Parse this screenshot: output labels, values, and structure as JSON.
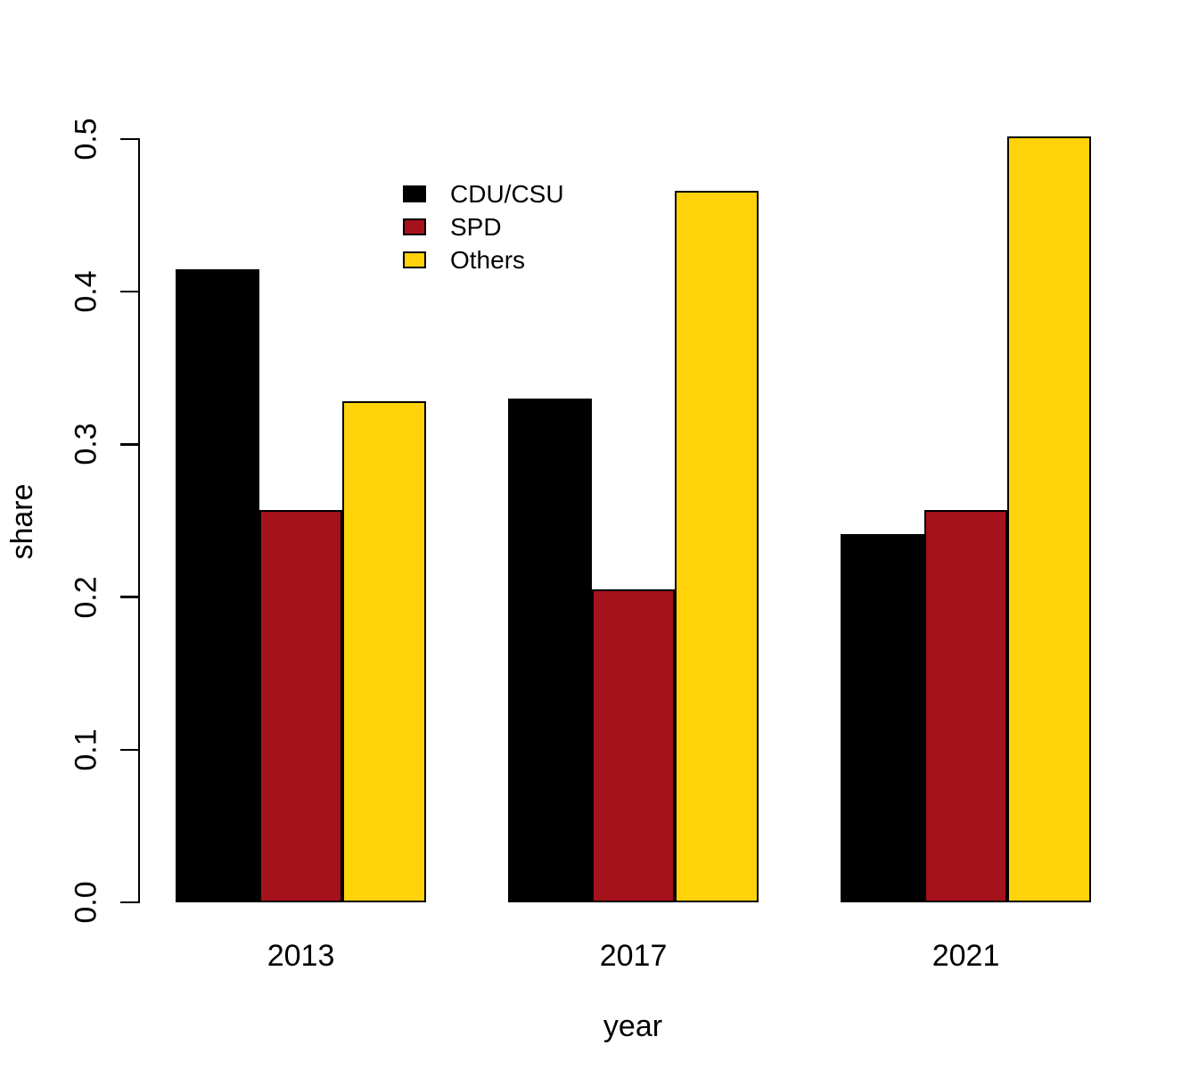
{
  "chart_data": {
    "type": "bar",
    "title": "",
    "xlabel": "year",
    "ylabel": "share",
    "categories": [
      "2013",
      "2017",
      "2021"
    ],
    "series": [
      {
        "name": "CDU/CSU",
        "color": "#000000",
        "values": [
          0.415,
          0.33,
          0.241
        ]
      },
      {
        "name": "SPD",
        "color": "#A5121B",
        "values": [
          0.257,
          0.205,
          0.257
        ]
      },
      {
        "name": "Others",
        "color": "#FFD20A",
        "values": [
          0.328,
          0.466,
          0.502
        ]
      }
    ],
    "ylim": [
      0,
      0.5
    ],
    "yticks": [
      0.0,
      0.1,
      0.2,
      0.3,
      0.4,
      0.5
    ],
    "ytick_labels": [
      "0.0",
      "0.1",
      "0.2",
      "0.3",
      "0.4",
      "0.5"
    ],
    "grid": false,
    "legend_position": "top-left-of-plot",
    "bar_border_color": "#000000",
    "axis_color": "#000000",
    "background_color": "#FFFFFF"
  }
}
